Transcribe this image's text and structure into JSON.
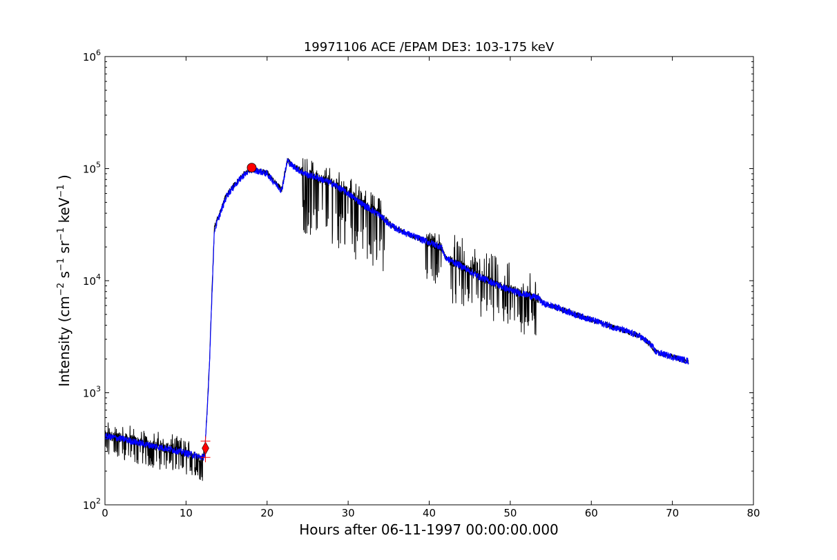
{
  "chart_data": {
    "type": "line",
    "title": "19971106 ACE /EPAM DE3: 103-175 keV",
    "xlabel": "Hours after 06-11-1997 00:00:00.000",
    "ylabel_parts": {
      "prefix": "Intensity (cm",
      "sup1": "−2",
      "s": " s",
      "sup2": "−1",
      "sr": " sr",
      "sup3": "−1",
      "kev": " keV",
      "sup4": "−1",
      "suffix": " )"
    },
    "xlim": [
      0,
      80
    ],
    "ylim": [
      100,
      1000000
    ],
    "yscale": "log",
    "x_ticks": [
      "0",
      "10",
      "20",
      "30",
      "40",
      "50",
      "60",
      "70",
      "80"
    ],
    "y_ticks": [
      {
        "base": "10",
        "exp": "2",
        "value": 100
      },
      {
        "base": "10",
        "exp": "3",
        "value": 1000
      },
      {
        "base": "10",
        "exp": "4",
        "value": 10000
      },
      {
        "base": "10",
        "exp": "5",
        "value": 100000
      },
      {
        "base": "10",
        "exp": "6",
        "value": 1000000
      }
    ],
    "grid": false,
    "series": [
      {
        "role": "raw",
        "color": "#000000",
        "points": [
          [
            0,
            420
          ],
          [
            2,
            400
          ],
          [
            4,
            370
          ],
          [
            6,
            340
          ],
          [
            8,
            320
          ],
          [
            10,
            290
          ],
          [
            12,
            260
          ],
          [
            12.3,
            280
          ],
          [
            12.6,
            700
          ],
          [
            12.9,
            2000
          ],
          [
            13.2,
            8000
          ],
          [
            13.5,
            30000
          ],
          [
            14,
            38000
          ],
          [
            15,
            58000
          ],
          [
            16,
            72000
          ],
          [
            17,
            88000
          ],
          [
            18,
            100000
          ],
          [
            19,
            96000
          ],
          [
            20,
            92000
          ],
          [
            21,
            75000
          ],
          [
            21.8,
            65000
          ],
          [
            22.5,
            120000
          ],
          [
            23,
            110000
          ],
          [
            24,
            98000
          ],
          [
            25,
            90000
          ],
          [
            26,
            85000
          ],
          [
            28,
            75000
          ],
          [
            30,
            62000
          ],
          [
            32,
            48000
          ],
          [
            34,
            40000
          ],
          [
            35,
            33000
          ],
          [
            36,
            29000
          ],
          [
            38,
            25000
          ],
          [
            40,
            22000
          ],
          [
            41.5,
            20000
          ],
          [
            42,
            16000
          ],
          [
            44,
            13500
          ],
          [
            46,
            11000
          ],
          [
            48,
            9500
          ],
          [
            50,
            8200
          ],
          [
            52,
            7500
          ],
          [
            53.5,
            7000
          ],
          [
            54,
            6300
          ],
          [
            56,
            5700
          ],
          [
            58,
            5000
          ],
          [
            60,
            4500
          ],
          [
            62,
            4000
          ],
          [
            64,
            3600
          ],
          [
            66,
            3200
          ],
          [
            67.3,
            2700
          ],
          [
            68,
            2300
          ],
          [
            70,
            2100
          ],
          [
            72,
            1900
          ]
        ],
        "spikes": [
          {
            "x_range": [
              0,
              12.2
            ],
            "down_factor": 0.62,
            "up_factor": 1.35
          },
          {
            "x_range": [
              24.2,
              34.5
            ],
            "down_factor": 0.28,
            "up_factor": 1.4
          },
          {
            "x_range": [
              39.5,
              41.5
            ],
            "down_factor": 0.45,
            "up_factor": 1.3
          },
          {
            "x_range": [
              42.5,
              53.5
            ],
            "down_factor": 0.42,
            "up_factor": 1.8
          }
        ]
      },
      {
        "role": "smoothed",
        "color": "#0000ff",
        "points": [
          [
            0,
            410
          ],
          [
            2,
            390
          ],
          [
            4,
            360
          ],
          [
            6,
            335
          ],
          [
            8,
            315
          ],
          [
            10,
            290
          ],
          [
            12,
            265
          ],
          [
            12.3,
            275
          ],
          [
            12.6,
            650
          ],
          [
            12.9,
            1900
          ],
          [
            13.2,
            7500
          ],
          [
            13.5,
            28000
          ],
          [
            14,
            36000
          ],
          [
            15,
            57000
          ],
          [
            16,
            71000
          ],
          [
            17,
            86000
          ],
          [
            18,
            98000
          ],
          [
            19,
            95000
          ],
          [
            20,
            90000
          ],
          [
            21,
            74000
          ],
          [
            21.8,
            64000
          ],
          [
            22.5,
            118000
          ],
          [
            23,
            108000
          ],
          [
            24,
            96000
          ],
          [
            25,
            88000
          ],
          [
            26,
            84000
          ],
          [
            28,
            74000
          ],
          [
            30,
            60000
          ],
          [
            32,
            47000
          ],
          [
            34,
            38000
          ],
          [
            35,
            32000
          ],
          [
            36,
            29000
          ],
          [
            38,
            25000
          ],
          [
            40,
            22000
          ],
          [
            41.5,
            20000
          ],
          [
            42,
            16000
          ],
          [
            44,
            13500
          ],
          [
            46,
            11000
          ],
          [
            48,
            9500
          ],
          [
            50,
            8200
          ],
          [
            52,
            7500
          ],
          [
            53.5,
            7000
          ],
          [
            54,
            6300
          ],
          [
            56,
            5700
          ],
          [
            58,
            5000
          ],
          [
            60,
            4500
          ],
          [
            62,
            4000
          ],
          [
            64,
            3600
          ],
          [
            66,
            3200
          ],
          [
            67.3,
            2700
          ],
          [
            68,
            2300
          ],
          [
            70,
            2100
          ],
          [
            72,
            1920
          ]
        ]
      }
    ],
    "markers": [
      {
        "name": "onset",
        "shape": "diamond",
        "x": 12.4,
        "y": 320,
        "color": "#ff0000"
      },
      {
        "name": "onset-error-upper",
        "shape": "plus",
        "x": 12.4,
        "y": 370,
        "color": "#ff0000"
      },
      {
        "name": "onset-error-lower",
        "shape": "plus",
        "x": 12.4,
        "y": 265,
        "color": "#ff0000"
      },
      {
        "name": "peak",
        "shape": "circle",
        "x": 18.1,
        "y": 102000,
        "color": "#ff0000"
      }
    ]
  }
}
